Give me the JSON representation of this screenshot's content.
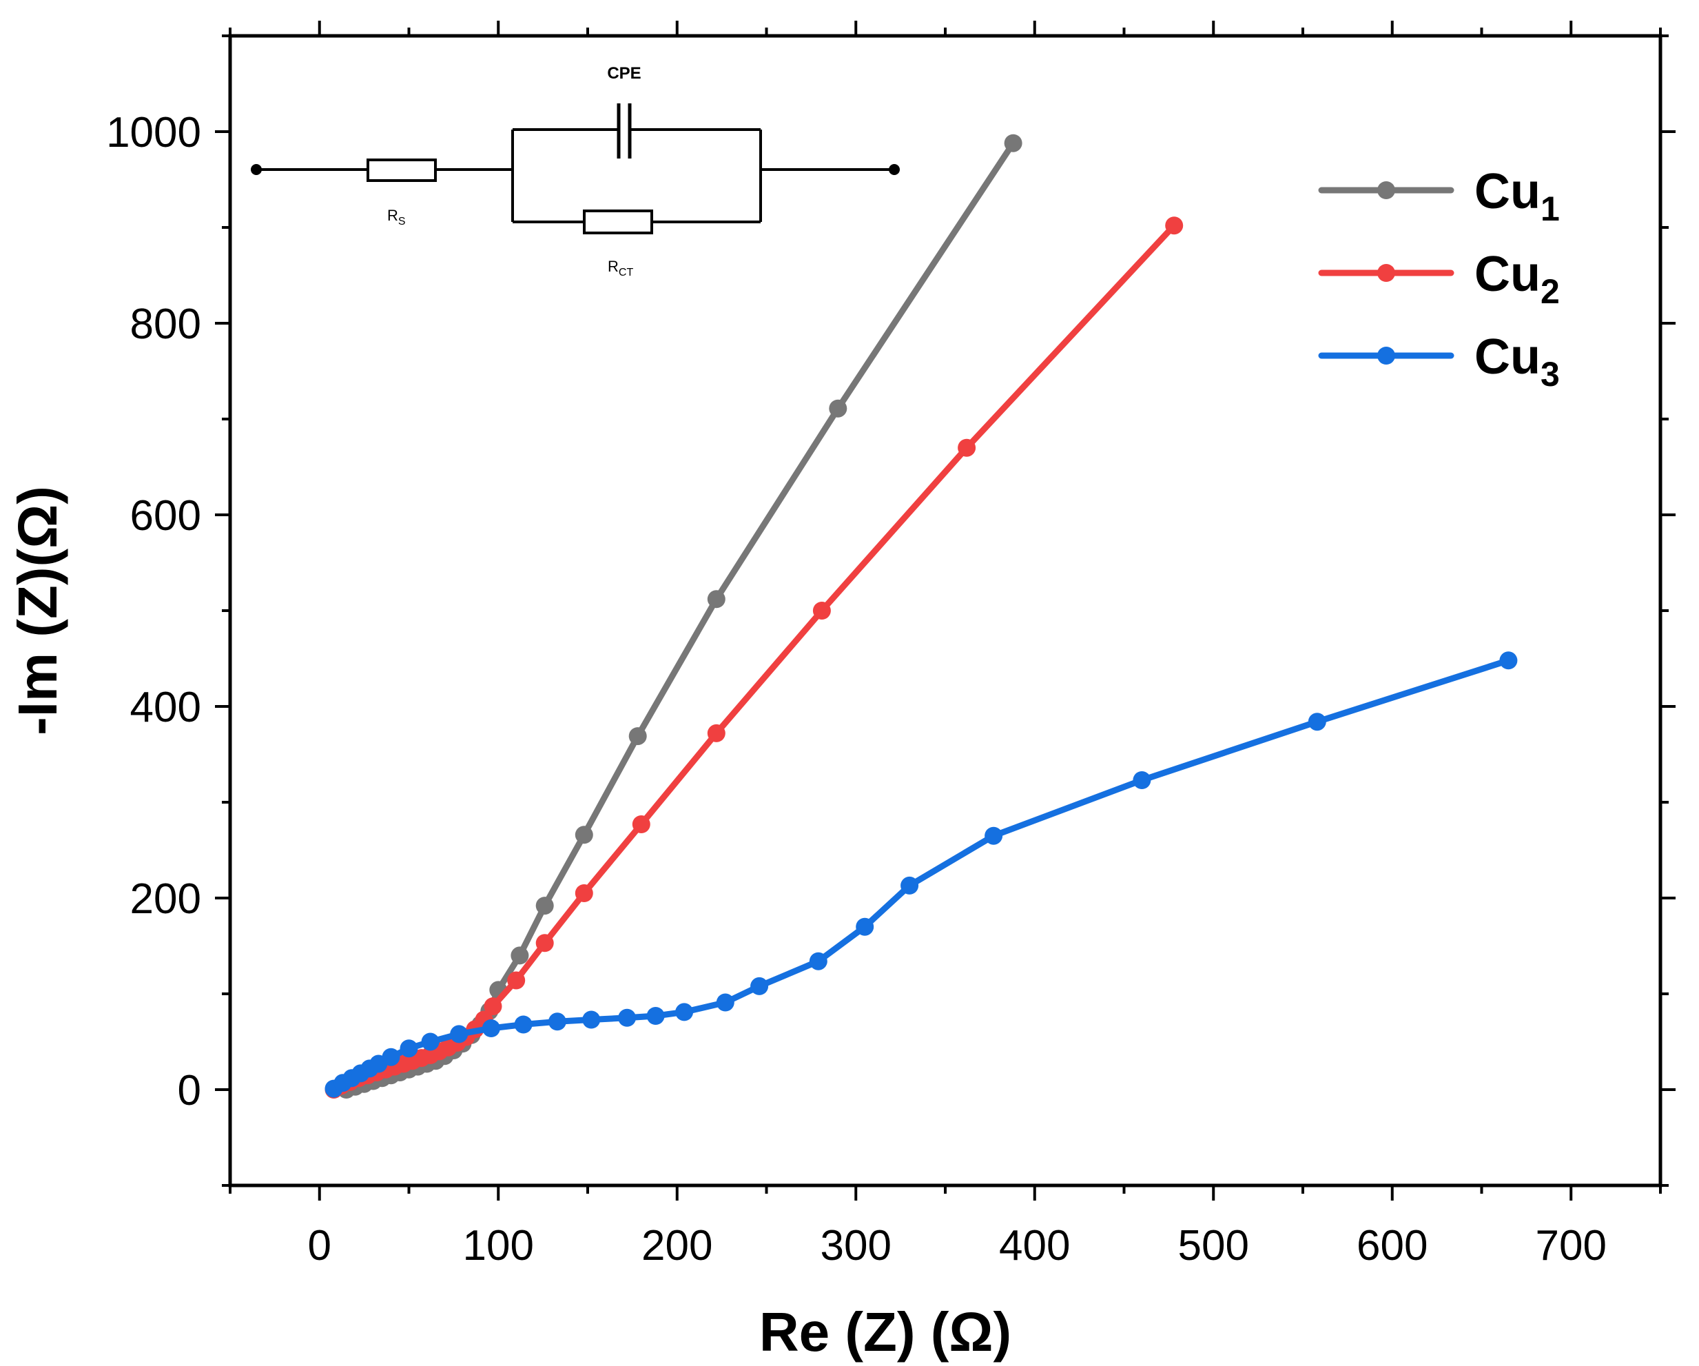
{
  "chart_data": {
    "type": "line",
    "title": "",
    "xlabel": "Re (Z) (Ω)",
    "ylabel": "-Im (Z)(Ω)",
    "xlim": [
      -50,
      750
    ],
    "ylim": [
      -100,
      1100
    ],
    "xticks": [
      0,
      100,
      200,
      300,
      400,
      500,
      600,
      700
    ],
    "yticks": [
      0,
      200,
      400,
      600,
      800,
      1000
    ],
    "xtick_labels": [
      "0",
      "100",
      "200",
      "300",
      "400",
      "500",
      "600",
      "700"
    ],
    "ytick_labels": [
      "0",
      "200",
      "400",
      "600",
      "800",
      "1000"
    ],
    "grid": false,
    "legend_position": "top-right",
    "series": [
      {
        "name": "Cu",
        "subscript": "1",
        "color": "#777777",
        "points": [
          [
            15,
            0
          ],
          [
            20,
            3
          ],
          [
            25,
            6
          ],
          [
            30,
            9
          ],
          [
            35,
            12
          ],
          [
            40,
            15
          ],
          [
            45,
            18
          ],
          [
            50,
            21
          ],
          [
            55,
            24
          ],
          [
            60,
            27
          ],
          [
            65,
            30
          ],
          [
            70,
            35
          ],
          [
            75,
            41
          ],
          [
            80,
            48
          ],
          [
            85,
            57
          ],
          [
            90,
            68
          ],
          [
            95,
            82
          ],
          [
            100,
            104
          ],
          [
            112,
            140
          ],
          [
            126,
            192
          ],
          [
            148,
            266
          ],
          [
            178,
            369
          ],
          [
            222,
            512
          ],
          [
            290,
            711
          ],
          [
            388,
            988
          ]
        ]
      },
      {
        "name": "Cu",
        "subscript": "2",
        "color": "#f04040",
        "points": [
          [
            8,
            0
          ],
          [
            12,
            4
          ],
          [
            17,
            8
          ],
          [
            22,
            12
          ],
          [
            27,
            15
          ],
          [
            32,
            18
          ],
          [
            37,
            21
          ],
          [
            42,
            24
          ],
          [
            47,
            27
          ],
          [
            52,
            30
          ],
          [
            57,
            33
          ],
          [
            62,
            36
          ],
          [
            67,
            40
          ],
          [
            72,
            44
          ],
          [
            77,
            49
          ],
          [
            82,
            55
          ],
          [
            87,
            63
          ],
          [
            92,
            73
          ],
          [
            97,
            87
          ],
          [
            110,
            114
          ],
          [
            126,
            153
          ],
          [
            148,
            205
          ],
          [
            180,
            277
          ],
          [
            222,
            372
          ],
          [
            281,
            500
          ],
          [
            362,
            670
          ],
          [
            478,
            902
          ]
        ]
      },
      {
        "name": "Cu",
        "subscript": "3",
        "color": "#1570e0",
        "points": [
          [
            8,
            1
          ],
          [
            13,
            7
          ],
          [
            18,
            12
          ],
          [
            23,
            17
          ],
          [
            28,
            22
          ],
          [
            33,
            27
          ],
          [
            40,
            34
          ],
          [
            50,
            43
          ],
          [
            62,
            50
          ],
          [
            78,
            58
          ],
          [
            96,
            64
          ],
          [
            114,
            68
          ],
          [
            133,
            71
          ],
          [
            152,
            73
          ],
          [
            172,
            75
          ],
          [
            188,
            77
          ],
          [
            204,
            81
          ],
          [
            227,
            91
          ],
          [
            246,
            108
          ],
          [
            279,
            134
          ],
          [
            305,
            170
          ],
          [
            330,
            213
          ],
          [
            377,
            265
          ],
          [
            460,
            323
          ],
          [
            558,
            384
          ],
          [
            665,
            448
          ]
        ]
      }
    ]
  },
  "circuit": {
    "cpe_label": "CPE",
    "rs_label": "R",
    "rs_sub": "S",
    "rct_label": "R",
    "rct_sub": "CT"
  }
}
